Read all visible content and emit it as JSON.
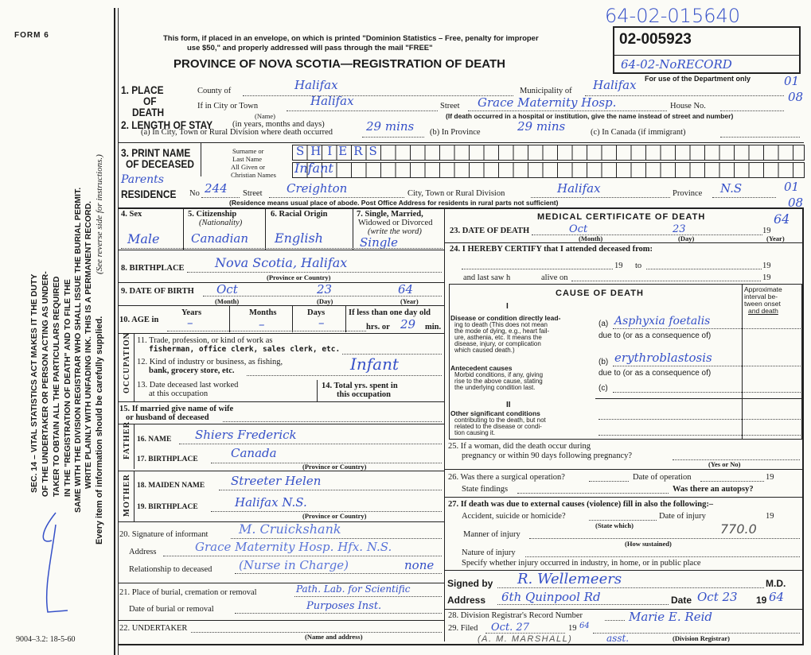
{
  "header": {
    "form_no": "FORM 6",
    "notice_1": "This form, if placed in an envelope, on which is printed \"Dominion Statistics – Free, penalty for improper",
    "notice_2": "use $50,\" and properly addressed will pass through the mail \"FREE\"",
    "title": "PROVINCE OF NOVA SCOTIA—REGISTRATION OF DEATH",
    "registration_no": "02-005923",
    "hand_top_no": "64-02-015640",
    "hand_box_note": "64-02-NoRECORD",
    "dept_only": "For use of the Department only",
    "margin_codes": [
      "01",
      "08",
      "01",
      "08"
    ]
  },
  "side": {
    "act_lines": [
      "SEC. 14 – VITAL STATISTICS ACT MAKES IT THE DUTY",
      "OF THE UNDERTAKER OR PERSON ACTING AS UNDER-",
      "TAKER TO OBTAIN ALL THE PARTICULARS REQUIRED",
      "IN THE \"REGISTRATION OF DEATH\" AND TO FILE THE",
      "SAME WITH THE DIVISION REGISTRAR WHO SHALL ISSUE THE BURIAL PERMIT.",
      "WRITE PLAINLY WITH UNFADING INK. THIS IS A PERMANENT RECORD."
    ],
    "every_item": "Every item of information should be carefully supplied.",
    "see_reverse": "(See reverse side for instructions.)",
    "form_code": "9004–3.2: 18-5-60"
  },
  "labels": {
    "place": "1. PLACE",
    "of": "OF",
    "death": "DEATH",
    "county": "County of",
    "municipality": "Municipality of",
    "city": "If in City or Town",
    "name_note": "(Name)",
    "street": "Street",
    "house": "House No.",
    "hospital_note": "(If death occurred in a hospital or institution, give the name instead of street and number)",
    "stay": "2. LENGTH OF STAY",
    "stay_note": "(in years, months and days)",
    "stay_a": "(a) In City, Town or Rural Division where death occurred",
    "stay_b": "(b) In Province",
    "stay_c": "(c) In Canada (if immigrant)",
    "print_name": "3. PRINT NAME",
    "of_deceased": "OF DECEASED",
    "surname": "Surname or",
    "last_name": "Last Name",
    "given": "All Given or",
    "christian": "Christian Names",
    "residence": "RESIDENCE",
    "res_no": "No",
    "res_street": "Street",
    "res_city": "City, Town or Rural Division",
    "res_prov": "Province",
    "res_note": "(Residence means usual place of abode. Post Office Address for residents in rural parts not sufficient)",
    "sex": "4. Sex",
    "citizenship": "5. Citizenship",
    "nationality": "(Nationality)",
    "racial": "6. Racial Origin",
    "marital": "7. Single, Married,",
    "marital2": "Widowed or Divorced",
    "marital3": "(write the word)",
    "birthplace": "8. BIRTHPLACE",
    "prov_country": "(Province or Country)",
    "dob": "9. DATE OF BIRTH",
    "month": "(Month)",
    "day": "(Day)",
    "year": "(Year)",
    "age": "10. AGE in",
    "years": "Years",
    "months": "Months",
    "days": "Days",
    "less_day": "If less than one day old",
    "hrs": "hrs. or",
    "min": "min.",
    "occupation": "OCCUPATION",
    "q11a": "11. Trade, profession, or kind of work as",
    "q11b": "fisherman, office clerk, sales clerk, etc.",
    "q12a": "12. Kind of industry or business, as fishing,",
    "q12b": "bank, grocery store, etc.",
    "q13a": "13. Date deceased last worked",
    "q13b": "at this occupation",
    "q14a": "14. Total yrs. spent in",
    "q14b": "this occupation",
    "q15a": "15. If married give name of wife",
    "q15b": "or husband of deceased",
    "father": "FATHER",
    "q16": "16. NAME",
    "q17": "17. BIRTHPLACE",
    "mother": "MOTHER",
    "q18": "18. MAIDEN NAME",
    "q19": "19. BIRTHPLACE",
    "q20": "20. Signature of informant",
    "address": "Address",
    "relationship": "Relationship to deceased",
    "q21": "21. Place of burial, cremation or removal",
    "date_burial": "Date of burial or removal",
    "q22": "22. UNDERTAKER",
    "name_address": "(Name and address)",
    "med_title": "MEDICAL CERTIFICATE OF DEATH",
    "q23": "23. DATE OF DEATH",
    "nineteen": "19",
    "q24": "24. I HEREBY CERTIFY that I attended deceased from:",
    "to": "to",
    "last_saw": "and last saw h",
    "alive_on": "alive on",
    "cause_title": "CAUSE OF DEATH",
    "roman1": "I",
    "roman2": "II",
    "interval": [
      "Approximate",
      "interval be-",
      "tween onset",
      "and death"
    ],
    "disease_lines": [
      "Disease or condition directly lead-",
      "ing to death (This does not mean",
      "the mode of dying, e.g., heart fail-",
      "ure, asthenia, etc. It means the",
      "disease, injury, or complication",
      "which caused death.)"
    ],
    "antecedent_lines": [
      "Antecedent causes",
      "Morbid conditions, if any, giving",
      "rise to the above cause, stating",
      "the underlying condition last."
    ],
    "other_lines": [
      "Other significant conditions",
      "contributing to the death, but not",
      "related to the disease or condi-",
      "tion causing it."
    ],
    "a": "(a)",
    "b": "(b)",
    "c": "(c)",
    "due_to": "due to (or as a consequence of)",
    "q25a": "25. If a woman, did the death occur during",
    "q25b": "pregnancy or within 90 days following pregnancy?",
    "yes_no": "(Yes or No)",
    "q26": "26. Was there a surgical operation?",
    "date_op": "Date of operation",
    "findings": "State findings",
    "autopsy": "Was there an autopsy?",
    "q27": "27. If death was due to external causes (violence) fill in also the following:–",
    "accident": "Accident, suicide or homicide?",
    "date_injury": "Date of injury",
    "state_which": "(State which)",
    "manner": "Manner of injury",
    "how": "(How sustained)",
    "nature": "Nature of injury",
    "specify": "Specify whether injury occurred in industry, in home, or in public place",
    "signed": "Signed by",
    "md": "M.D.",
    "sig_address": "Address",
    "date": "Date",
    "q28": "28. Division Registrar's Record Number",
    "q29": "29. Filed",
    "div_reg": "(Division Registrar)"
  },
  "entries": {
    "county": "Halifax",
    "municipality": "Halifax",
    "city": "Halifax",
    "street": "Grace Maternity Hosp.",
    "stay_a": "29 mins",
    "stay_b": "29 mins",
    "surname": "SHIERS",
    "given": "Infant",
    "parents": "Parents",
    "res_no": "244",
    "res_street": "Creighton",
    "res_city": "Halifax",
    "res_prov": "N.S",
    "sex": "Male",
    "citizenship": "Canadian",
    "racial": "English",
    "marital": "Single",
    "birthplace": "Nova Scotia, Halifax",
    "dob_month": "Oct",
    "dob_day": "23",
    "dob_year": "64",
    "age_years": "–",
    "age_months": "–",
    "age_days": "–",
    "age_min": "29",
    "occupation": "Infant",
    "father_name": "Shiers  Frederick",
    "father_birth": "Canada",
    "mother_name": "Streeter  Helen",
    "mother_birth": "Halifax  N.S.",
    "informant": "M. Cruickshank",
    "inf_address": "Grace Maternity Hosp. Hfx. N.S.",
    "relationship": "(Nurse in Charge)",
    "relationship_2": "none",
    "burial": "Path. Lab. for Scientific",
    "burial_2": "Purposes Inst.",
    "death_month": "Oct",
    "death_day": "23",
    "death_year": "64",
    "cause_a": "Asphyxia foetalis",
    "cause_b": "erythroblastosis",
    "code": "770.0",
    "signed": "R. Wellemeers",
    "sig_address": "6th Quinpool Rd",
    "sig_date": "Oct 23",
    "sig_year": "64",
    "filed": "Oct. 27",
    "filed_year": "64",
    "registrar": "Marie E. Reid",
    "asst": "asst.",
    "marshall": "(A. M. MARSHALL)"
  },
  "colors": {
    "ink": "#3550c8",
    "paper": "#fbfbf6",
    "print": "#1a1a1a"
  }
}
